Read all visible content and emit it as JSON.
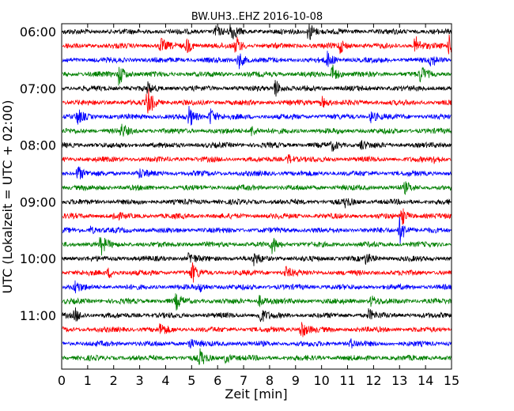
{
  "chart_data": {
    "type": "line",
    "title": "BW.UH3..EHZ 2016-10-08",
    "xlabel": "Zeit  [min]",
    "ylabel": "UTC (Lokalzeit = UTC + 02:00)",
    "xlim": [
      0,
      15
    ],
    "x_ticks": [
      "0",
      "1",
      "2",
      "3",
      "4",
      "5",
      "6",
      "7",
      "8",
      "9",
      "10",
      "11",
      "12",
      "13",
      "14",
      "15"
    ],
    "y_ticks": [
      "06:00",
      "07:00",
      "08:00",
      "09:00",
      "10:00",
      "11:00"
    ],
    "trace_colors": [
      "#000000",
      "#ff0000",
      "#0000ff",
      "#008000"
    ],
    "traces": [
      {
        "start": "06:00",
        "events": [
          [
            6.5,
            1.6
          ],
          [
            9.5,
            1.8
          ],
          [
            5.9,
            0.9
          ]
        ]
      },
      {
        "start": "06:15",
        "events": [
          [
            3.8,
            1.2
          ],
          [
            4.8,
            1.3
          ],
          [
            6.7,
            1.6
          ],
          [
            10.7,
            1.2
          ],
          [
            13.6,
            1.6
          ],
          [
            14.9,
            1.6
          ]
        ]
      },
      {
        "start": "06:30",
        "events": [
          [
            6.8,
            1.5
          ],
          [
            10.2,
            1.3
          ],
          [
            14.2,
            1.0
          ]
        ]
      },
      {
        "start": "06:45",
        "events": [
          [
            2.2,
            1.9
          ],
          [
            10.4,
            1.7
          ],
          [
            13.8,
            1.4
          ]
        ]
      },
      {
        "start": "07:00",
        "events": [
          [
            8.2,
            1.6
          ],
          [
            3.3,
            0.8
          ]
        ]
      },
      {
        "start": "07:15",
        "events": [
          [
            3.3,
            2.6
          ],
          [
            10.0,
            1.0
          ]
        ]
      },
      {
        "start": "07:30",
        "events": [
          [
            4.9,
            1.6
          ],
          [
            5.7,
            1.5
          ],
          [
            0.6,
            1.2
          ],
          [
            11.9,
            1.0
          ]
        ]
      },
      {
        "start": "07:45",
        "events": [
          [
            2.3,
            1.0
          ],
          [
            7.3,
            0.9
          ]
        ]
      },
      {
        "start": "08:00",
        "events": [
          [
            11.5,
            0.8
          ],
          [
            10.4,
            0.8
          ]
        ]
      },
      {
        "start": "08:15",
        "events": [
          [
            8.7,
            0.9
          ],
          [
            14.3,
            0.8
          ]
        ]
      },
      {
        "start": "08:30",
        "events": [
          [
            0.6,
            1.4
          ],
          [
            3.0,
            0.7
          ]
        ]
      },
      {
        "start": "08:45",
        "events": [
          [
            13.2,
            0.8
          ]
        ]
      },
      {
        "start": "09:00",
        "events": [
          [
            10.9,
            0.7
          ]
        ]
      },
      {
        "start": "09:15",
        "events": [
          [
            13.1,
            1.3
          ],
          [
            2.0,
            0.6
          ]
        ]
      },
      {
        "start": "09:30",
        "events": [
          [
            13.0,
            2.3
          ],
          [
            1.1,
            0.6
          ]
        ]
      },
      {
        "start": "09:45",
        "events": [
          [
            1.5,
            1.6
          ],
          [
            8.1,
            1.4
          ]
        ]
      },
      {
        "start": "10:00",
        "events": [
          [
            7.4,
            1.0
          ],
          [
            4.9,
            1.1
          ],
          [
            11.7,
            0.8
          ]
        ]
      },
      {
        "start": "10:15",
        "events": [
          [
            5.0,
            1.6
          ],
          [
            8.6,
            1.0
          ],
          [
            1.8,
            0.8
          ]
        ]
      },
      {
        "start": "10:30",
        "events": [
          [
            0.5,
            1.0
          ],
          [
            5.3,
            0.7
          ]
        ]
      },
      {
        "start": "10:45",
        "events": [
          [
            4.4,
            1.2
          ],
          [
            7.6,
            0.9
          ],
          [
            11.9,
            0.9
          ]
        ]
      },
      {
        "start": "11:00",
        "events": [
          [
            7.6,
            1.6
          ],
          [
            0.5,
            1.1
          ],
          [
            11.8,
            0.9
          ]
        ]
      },
      {
        "start": "11:15",
        "events": [
          [
            9.2,
            1.6
          ],
          [
            3.8,
            1.0
          ]
        ]
      },
      {
        "start": "11:30",
        "events": [
          [
            4.9,
            0.9
          ],
          [
            11.1,
            0.7
          ]
        ]
      },
      {
        "start": "11:45",
        "events": [
          [
            5.3,
            1.4
          ],
          [
            6.3,
            0.8
          ]
        ]
      }
    ]
  }
}
